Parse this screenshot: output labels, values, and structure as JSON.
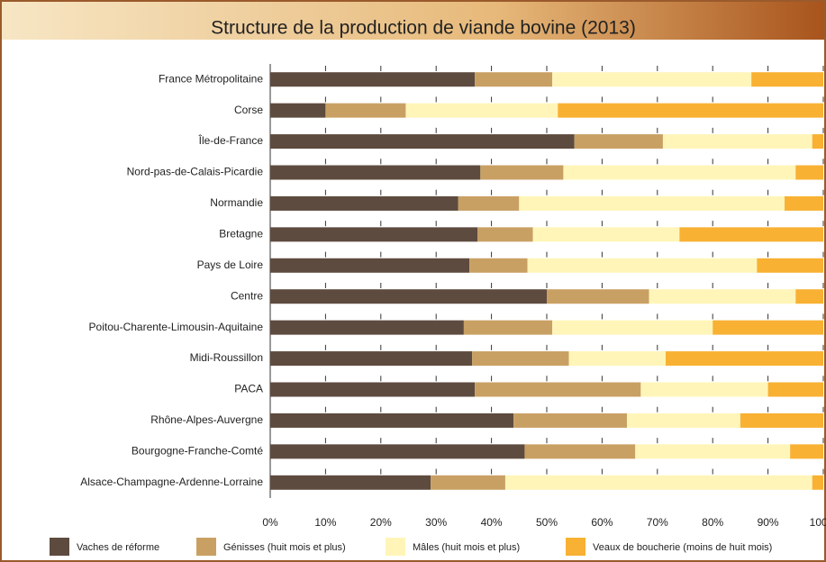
{
  "chart_data": {
    "type": "bar",
    "orientation": "horizontal",
    "stacked": true,
    "title": "Structure de la production de viande bovine (2013)",
    "categories": [
      "France Métropolitaine",
      "Corse",
      "Île-de-France",
      "Nord-pas-de-Calais-Picardie",
      "Normandie",
      "Bretagne",
      "Pays de Loire",
      "Centre",
      "Poitou-Charente-Limousin-Aquitaine",
      "Midi-Roussillon",
      "PACA",
      "Rhône-Alpes-Auvergne",
      "Bourgogne-Franche-Comté",
      "Alsace-Champagne-Ardenne-Lorraine"
    ],
    "series": [
      {
        "name": "Vaches de réforme",
        "color": "#5e4b3f",
        "values": [
          37,
          10,
          55,
          38,
          34,
          37.5,
          36,
          50,
          35,
          36.5,
          37,
          44,
          46,
          29
        ]
      },
      {
        "name": "Génisses (huit mois et plus)",
        "color": "#c9a063",
        "values": [
          14,
          14.5,
          16,
          15,
          11,
          10,
          10.5,
          18.5,
          16,
          17.5,
          30,
          20.5,
          20,
          13.5
        ]
      },
      {
        "name": "Mâles (huit mois et plus)",
        "color": "#fff5b8",
        "values": [
          36,
          27.5,
          27,
          42,
          48,
          26.5,
          41.5,
          26.5,
          29,
          17.5,
          23,
          20.5,
          28,
          55.5
        ]
      },
      {
        "name": "Veaux de boucherie (moins de huit mois)",
        "color": "#f8b133",
        "values": [
          13,
          48,
          2,
          5,
          7,
          26,
          12,
          5,
          20,
          28.5,
          10,
          15,
          6,
          2
        ]
      }
    ],
    "xlim": [
      0,
      100
    ],
    "xticks": [
      {
        "value": 0,
        "label": "0%"
      },
      {
        "value": 10,
        "label": "10%"
      },
      {
        "value": 20,
        "label": "20%"
      },
      {
        "value": 30,
        "label": "30%"
      },
      {
        "value": 40,
        "label": "40%"
      },
      {
        "value": 50,
        "label": "50%"
      },
      {
        "value": 60,
        "label": "60%"
      },
      {
        "value": 70,
        "label": "70%"
      },
      {
        "value": 80,
        "label": "80%"
      },
      {
        "value": 90,
        "label": "90%"
      },
      {
        "value": 100,
        "label": "100%"
      }
    ],
    "legend": "bottom"
  }
}
